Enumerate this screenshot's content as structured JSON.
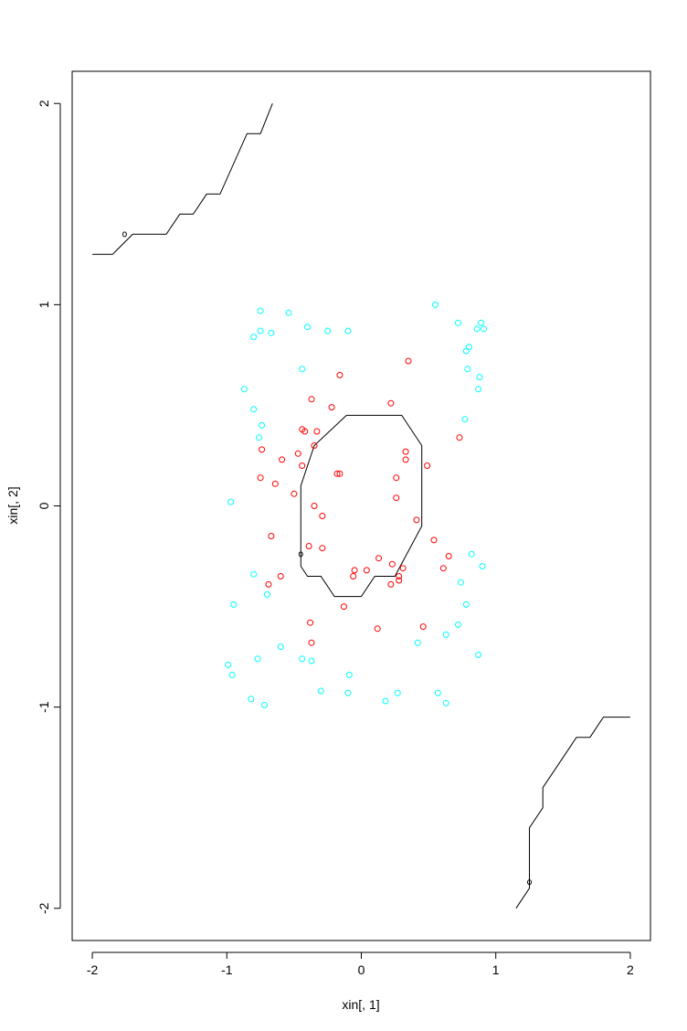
{
  "chart_data": {
    "type": "scatter",
    "title": "",
    "xlabel": "xin[, 1]",
    "ylabel": "xin[, 2]",
    "xlim": [
      -2.15,
      2.15
    ],
    "ylim": [
      -2.16,
      2.16
    ],
    "xticks": [
      -2,
      -1,
      0,
      1,
      2
    ],
    "yticks": [
      -2,
      -1,
      0,
      1,
      2
    ],
    "xtick_labels": [
      "-2",
      "-1",
      "0",
      "1",
      "2"
    ],
    "ytick_labels": [
      "-2",
      "-1",
      "0",
      "1",
      "2"
    ],
    "grid": false,
    "legend": "none",
    "colors": {
      "class_a": "#ff0000",
      "class_b": "#00ffff",
      "contour": "#000000",
      "axes": "#000000"
    },
    "series": [
      {
        "class": "a",
        "color": "#ff0000",
        "points": [
          [
            0.35,
            0.72
          ],
          [
            -0.16,
            0.65
          ],
          [
            -0.37,
            0.53
          ],
          [
            0.22,
            0.51
          ],
          [
            -0.22,
            0.49
          ],
          [
            -0.44,
            0.38
          ],
          [
            -0.42,
            0.37
          ],
          [
            -0.33,
            0.37
          ],
          [
            0.73,
            0.34
          ],
          [
            -0.35,
            0.3
          ],
          [
            -0.74,
            0.28
          ],
          [
            0.33,
            0.27
          ],
          [
            -0.47,
            0.26
          ],
          [
            -0.59,
            0.23
          ],
          [
            0.33,
            0.23
          ],
          [
            -0.44,
            0.2
          ],
          [
            0.49,
            0.2
          ],
          [
            -0.18,
            0.16
          ],
          [
            -0.16,
            0.16
          ],
          [
            -0.75,
            0.14
          ],
          [
            0.26,
            0.14
          ],
          [
            -0.64,
            0.11
          ],
          [
            -0.5,
            0.06
          ],
          [
            0.26,
            0.04
          ],
          [
            -0.35,
            0.0
          ],
          [
            -0.29,
            -0.05
          ],
          [
            0.41,
            -0.07
          ],
          [
            -0.67,
            -0.15
          ],
          [
            0.54,
            -0.17
          ],
          [
            -0.39,
            -0.2
          ],
          [
            -0.29,
            -0.21
          ],
          [
            0.65,
            -0.25
          ],
          [
            0.13,
            -0.26
          ],
          [
            0.23,
            -0.29
          ],
          [
            0.31,
            -0.31
          ],
          [
            0.61,
            -0.31
          ],
          [
            0.04,
            -0.32
          ],
          [
            -0.05,
            -0.32
          ],
          [
            -0.06,
            -0.35
          ],
          [
            -0.6,
            -0.35
          ],
          [
            0.28,
            -0.35
          ],
          [
            0.28,
            -0.37
          ],
          [
            -0.69,
            -0.39
          ],
          [
            0.22,
            -0.39
          ],
          [
            -0.13,
            -0.5
          ],
          [
            -0.38,
            -0.58
          ],
          [
            0.46,
            -0.6
          ],
          [
            0.12,
            -0.61
          ],
          [
            -0.37,
            -0.68
          ]
        ]
      },
      {
        "class": "b",
        "color": "#00ffff",
        "points": [
          [
            0.55,
            1.0
          ],
          [
            -0.75,
            0.97
          ],
          [
            -0.54,
            0.96
          ],
          [
            0.72,
            0.91
          ],
          [
            0.89,
            0.91
          ],
          [
            -0.4,
            0.89
          ],
          [
            0.86,
            0.88
          ],
          [
            0.91,
            0.88
          ],
          [
            -0.75,
            0.87
          ],
          [
            -0.1,
            0.87
          ],
          [
            -0.25,
            0.87
          ],
          [
            -0.67,
            0.86
          ],
          [
            -0.8,
            0.84
          ],
          [
            0.8,
            0.79
          ],
          [
            0.78,
            0.77
          ],
          [
            0.79,
            0.68
          ],
          [
            -0.44,
            0.68
          ],
          [
            0.88,
            0.64
          ],
          [
            -0.87,
            0.58
          ],
          [
            0.87,
            0.58
          ],
          [
            -0.8,
            0.48
          ],
          [
            0.77,
            0.43
          ],
          [
            -0.74,
            0.4
          ],
          [
            -0.76,
            0.34
          ],
          [
            -0.97,
            0.02
          ],
          [
            0.82,
            -0.24
          ],
          [
            0.9,
            -0.3
          ],
          [
            -0.8,
            -0.34
          ],
          [
            0.74,
            -0.38
          ],
          [
            -0.7,
            -0.44
          ],
          [
            -0.95,
            -0.49
          ],
          [
            0.78,
            -0.49
          ],
          [
            0.72,
            -0.59
          ],
          [
            0.63,
            -0.64
          ],
          [
            0.42,
            -0.68
          ],
          [
            -0.6,
            -0.7
          ],
          [
            0.87,
            -0.74
          ],
          [
            -0.44,
            -0.76
          ],
          [
            -0.77,
            -0.76
          ],
          [
            -0.37,
            -0.77
          ],
          [
            -0.99,
            -0.79
          ],
          [
            -0.96,
            -0.84
          ],
          [
            -0.09,
            -0.84
          ],
          [
            -0.3,
            -0.92
          ],
          [
            0.27,
            -0.93
          ],
          [
            0.57,
            -0.93
          ],
          [
            -0.1,
            -0.93
          ],
          [
            -0.82,
            -0.96
          ],
          [
            0.18,
            -0.97
          ],
          [
            0.63,
            -0.98
          ],
          [
            -0.72,
            -0.99
          ]
        ]
      }
    ],
    "contours": [
      [
        [
          -0.11,
          0.45
        ],
        [
          0.3,
          0.45
        ],
        [
          0.45,
          0.3
        ],
        [
          0.45,
          -0.1
        ],
        [
          0.25,
          -0.35
        ],
        [
          0.1,
          -0.35
        ],
        [
          0.0,
          -0.45
        ],
        [
          -0.2,
          -0.45
        ],
        [
          -0.3,
          -0.35
        ],
        [
          -0.4,
          -0.35
        ],
        [
          -0.45,
          -0.3
        ],
        [
          -0.45,
          0.1
        ],
        [
          -0.35,
          0.3
        ],
        [
          -0.11,
          0.45
        ]
      ],
      [
        [
          -0.66,
          2.0
        ],
        [
          -0.75,
          1.85
        ],
        [
          -0.85,
          1.85
        ],
        [
          -1.05,
          1.55
        ],
        [
          -1.15,
          1.55
        ],
        [
          -1.25,
          1.45
        ],
        [
          -1.35,
          1.45
        ],
        [
          -1.45,
          1.35
        ],
        [
          -1.7,
          1.35
        ],
        [
          -1.85,
          1.25
        ],
        [
          -2.0,
          1.25
        ]
      ],
      [
        [
          1.15,
          -2.0
        ],
        [
          1.25,
          -1.9
        ],
        [
          1.25,
          -1.6
        ],
        [
          1.35,
          -1.5
        ],
        [
          1.35,
          -1.4
        ],
        [
          1.45,
          -1.3
        ],
        [
          1.55,
          -1.2
        ],
        [
          1.6,
          -1.15
        ],
        [
          1.7,
          -1.15
        ],
        [
          1.8,
          -1.05
        ],
        [
          2.0,
          -1.05
        ]
      ]
    ],
    "contour_marks": [
      [
        -1.76,
        1.35
      ],
      [
        -0.45,
        -0.24
      ],
      [
        1.25,
        -1.87
      ]
    ]
  }
}
